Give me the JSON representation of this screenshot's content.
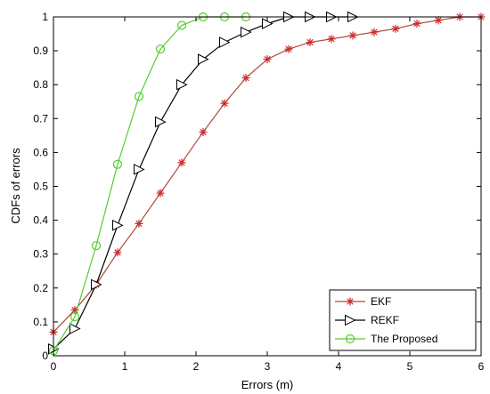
{
  "chart_data": {
    "type": "line",
    "xlabel": "Errors (m)",
    "ylabel": "CDFs of errors",
    "xlim": [
      0,
      6
    ],
    "ylim": [
      0,
      1
    ],
    "xticks": [
      "0",
      "1",
      "2",
      "3",
      "4",
      "5",
      "6"
    ],
    "yticks": [
      "0",
      "0.1",
      "0.2",
      "0.3",
      "0.4",
      "0.5",
      "0.6",
      "0.7",
      "0.8",
      "0.9",
      "1"
    ],
    "grid": false,
    "legend_position": "bottom-right",
    "series": [
      {
        "name": "EKF",
        "color": "#b0493a",
        "marker_color": "#cc2a2a",
        "marker": "asterisk",
        "x": [
          0,
          0.3,
          0.6,
          0.9,
          1.2,
          1.5,
          1.8,
          2.1,
          2.4,
          2.7,
          3.0,
          3.3,
          3.6,
          3.9,
          4.2,
          4.5,
          4.8,
          5.1,
          5.4,
          5.7,
          6.0
        ],
        "y": [
          0.07,
          0.135,
          0.21,
          0.305,
          0.39,
          0.48,
          0.57,
          0.66,
          0.745,
          0.82,
          0.875,
          0.905,
          0.925,
          0.935,
          0.945,
          0.955,
          0.965,
          0.98,
          0.99,
          1.0,
          1.0
        ]
      },
      {
        "name": "REKF",
        "color": "#000000",
        "marker_color": "#000000",
        "marker": "triangle-right",
        "x": [
          0,
          0.3,
          0.6,
          0.9,
          1.2,
          1.5,
          1.8,
          2.1,
          2.4,
          2.7,
          3.0,
          3.3,
          3.6,
          3.9,
          4.2
        ],
        "y": [
          0.02,
          0.08,
          0.21,
          0.385,
          0.55,
          0.69,
          0.8,
          0.875,
          0.925,
          0.955,
          0.98,
          1.0,
          1.0,
          1.0,
          1.0
        ]
      },
      {
        "name": "The Proposed",
        "color": "#55cc33",
        "marker_color": "#55cc33",
        "marker": "circle",
        "x": [
          0,
          0.3,
          0.6,
          0.9,
          1.2,
          1.5,
          1.8,
          2.1,
          2.4,
          2.7
        ],
        "y": [
          0.015,
          0.115,
          0.325,
          0.565,
          0.765,
          0.905,
          0.975,
          1.0,
          1.0,
          1.0
        ]
      }
    ]
  }
}
